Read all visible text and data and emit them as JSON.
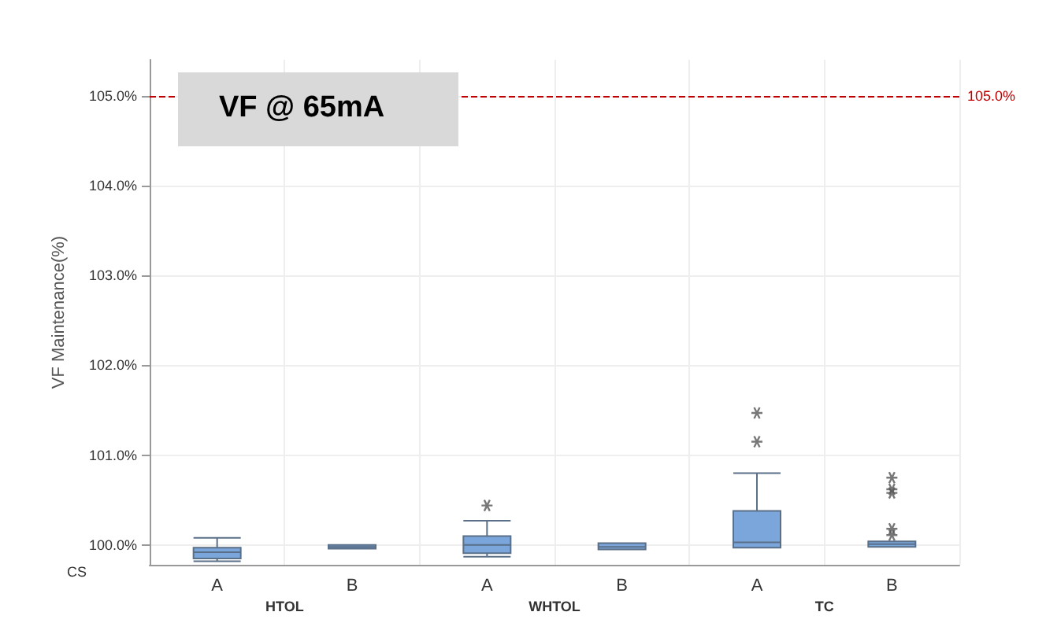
{
  "chart_data": {
    "type": "box",
    "title": "VF @ 65mA",
    "ylabel": "VF Maintenance(%)",
    "xlabel": "CS",
    "categories": [
      "A",
      "B",
      "A",
      "B",
      "A",
      "B"
    ],
    "annotations": [
      "HTOL",
      "WHTOL",
      "TC"
    ],
    "series": [
      {
        "color": "#7aa6dc",
        "boxes": [
          {
            "low": 99.82,
            "q1": 99.85,
            "median": 99.92,
            "q3": 99.97,
            "high": 100.08
          },
          {
            "low": 99.96,
            "q1": 99.96,
            "median": 99.98,
            "q3": 100.0,
            "high": 100.0
          },
          {
            "low": 99.87,
            "q1": 99.91,
            "median": 100.0,
            "q3": 100.1,
            "high": 100.27,
            "outliers": [
              100.44
            ]
          },
          {
            "low": 99.95,
            "q1": 99.95,
            "median": 99.98,
            "q3": 100.02,
            "high": 100.02
          },
          {
            "low": 99.97,
            "q1": 99.97,
            "median": 100.03,
            "q3": 100.38,
            "high": 100.8,
            "outliers": [
              101.15,
              101.47
            ]
          },
          {
            "low": 99.98,
            "q1": 99.98,
            "median": 100.01,
            "q3": 100.04,
            "high": 100.04,
            "outliers": [
              100.11,
              100.18,
              100.58,
              100.62,
              100.75
            ]
          }
        ]
      }
    ],
    "ylim": [
      99.78,
      105.4
    ],
    "yticks": [
      {
        "value": 100,
        "label": "100.0%"
      },
      {
        "value": 101,
        "label": "101.0%"
      },
      {
        "value": 102,
        "label": "102.0%"
      },
      {
        "value": 103,
        "label": "103.0%"
      },
      {
        "value": 104,
        "label": "104.0%"
      },
      {
        "value": 105,
        "label": "105.0%"
      }
    ],
    "ref_lines": [
      {
        "axis": "y",
        "value": 105,
        "label": "105.0%",
        "color": "#c00000",
        "line_style": "dashed"
      }
    ],
    "grid": true
  }
}
